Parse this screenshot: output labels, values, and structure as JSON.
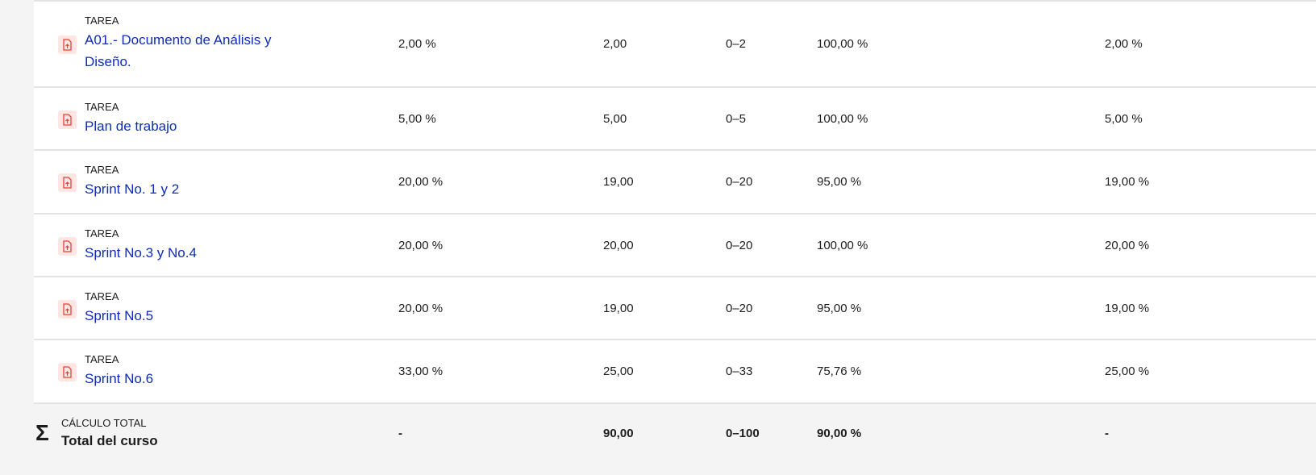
{
  "rows": [
    {
      "type": "TAREA",
      "name": "A01.- Documento de Análisis y Diseño.",
      "weight": "2,00 %",
      "grade": "2,00",
      "range": "0–2",
      "percentage": "100,00 %",
      "contribution": "2,00 %"
    },
    {
      "type": "TAREA",
      "name": "Plan de trabajo",
      "weight": "5,00 %",
      "grade": "5,00",
      "range": "0–5",
      "percentage": "100,00 %",
      "contribution": "5,00 %"
    },
    {
      "type": "TAREA",
      "name": "Sprint No. 1 y 2",
      "weight": "20,00 %",
      "grade": "19,00",
      "range": "0–20",
      "percentage": "95,00 %",
      "contribution": "19,00 %"
    },
    {
      "type": "TAREA",
      "name": "Sprint No.3 y No.4",
      "weight": "20,00 %",
      "grade": "20,00",
      "range": "0–20",
      "percentage": "100,00 %",
      "contribution": "20,00 %"
    },
    {
      "type": "TAREA",
      "name": "Sprint No.5",
      "weight": "20,00 %",
      "grade": "19,00",
      "range": "0–20",
      "percentage": "95,00 %",
      "contribution": "19,00 %"
    },
    {
      "type": "TAREA",
      "name": "Sprint No.6",
      "weight": "33,00 %",
      "grade": "25,00",
      "range": "0–33",
      "percentage": "75,76 %",
      "contribution": "25,00 %"
    }
  ],
  "total": {
    "type": "CÁLCULO TOTAL",
    "name": "Total del curso",
    "weight": "-",
    "grade": "90,00",
    "range": "0–100",
    "percentage": "90,00 %",
    "contribution": "-"
  },
  "icons": {
    "task": "assignment-upload-icon",
    "total": "sigma-icon"
  },
  "colors": {
    "link": "#0f2cb6",
    "icon": "#e8412f",
    "icon_bg": "#fde6e4"
  }
}
